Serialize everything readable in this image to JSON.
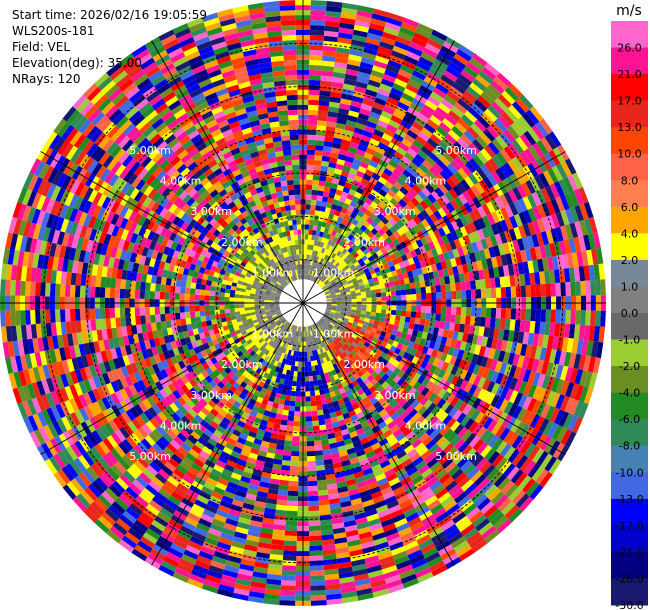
{
  "info": {
    "start_time": "Start time: 2026/02/16 19:05:59",
    "instrument": "WLS200s-181",
    "field": "Field: VEL",
    "elevation": "Elevation(deg): 35.00",
    "nrays": "NRays: 120"
  },
  "chart_data": {
    "type": "heatmap",
    "projection": "polar-ppi",
    "field": "VEL",
    "units": "m/s",
    "n_rays": 120,
    "n_gates": 56,
    "elevation_deg": 35.0,
    "range_max_km": 7.0,
    "range_rings_km": [
      1,
      2,
      3,
      4,
      5,
      6
    ],
    "ring_labels": {
      "r1": "1.00km",
      "r2": "2.00km",
      "r3": "3.00km",
      "r4": "4.00km",
      "r5": "5.00km"
    },
    "ring_label_bearings_deg": [
      315,
      45,
      135,
      225
    ],
    "colorbar": {
      "unit_label": "m/s",
      "ticks": [
        "26.0",
        "21.0",
        "17.0",
        "13.0",
        "10.0",
        "8.0",
        "6.0",
        "4.0",
        "2.0",
        "1.0",
        "0.0",
        "-1.0",
        "-2.0",
        "-4.0",
        "-6.0",
        "-8.0",
        "-10.0",
        "-13.0",
        "-17.0",
        "-21.0",
        "-26.0",
        "-30.0"
      ],
      "bins": [
        {
          "max": 30,
          "color": "#ff66cc"
        },
        {
          "max": 26,
          "color": "#ff1493"
        },
        {
          "max": 21,
          "color": "#ff0000"
        },
        {
          "max": 17,
          "color": "#e8261a"
        },
        {
          "max": 13,
          "color": "#ff4500"
        },
        {
          "max": 10,
          "color": "#ff6347"
        },
        {
          "max": 8,
          "color": "#ff7f50"
        },
        {
          "max": 6,
          "color": "#ffa500"
        },
        {
          "max": 4,
          "color": "#ffff00"
        },
        {
          "max": 2,
          "color": "#778899"
        },
        {
          "max": 1,
          "color": "#808080"
        },
        {
          "max": 0,
          "color": "#696969"
        },
        {
          "max": -1,
          "color": "#9acd32"
        },
        {
          "max": -2,
          "color": "#6b8e23"
        },
        {
          "max": -4,
          "color": "#228b22"
        },
        {
          "max": -6,
          "color": "#2e8b57"
        },
        {
          "max": -8,
          "color": "#4682b4"
        },
        {
          "max": -10,
          "color": "#4169e1"
        },
        {
          "max": -13,
          "color": "#0000ff"
        },
        {
          "max": -17,
          "color": "#0000cd"
        },
        {
          "max": -21,
          "color": "#000080"
        },
        {
          "max": -26,
          "color": "#191970"
        }
      ]
    },
    "regions": {
      "inner_clear_km": 0.55,
      "inner_signal_km": 1.1,
      "aerosol_band_km": 1.6,
      "transition_km": 2.2,
      "noise_from_km": 2.2
    },
    "plume": {
      "bearing_deg": 128,
      "spread_deg": 25,
      "range_km": [
        1.0,
        2.2
      ],
      "velocity_ms": 12
    },
    "southern_jet": {
      "bearing_deg": 182,
      "spread_deg": 18,
      "range_km": [
        1.0,
        2.2
      ],
      "velocity_ms": -14
    }
  }
}
